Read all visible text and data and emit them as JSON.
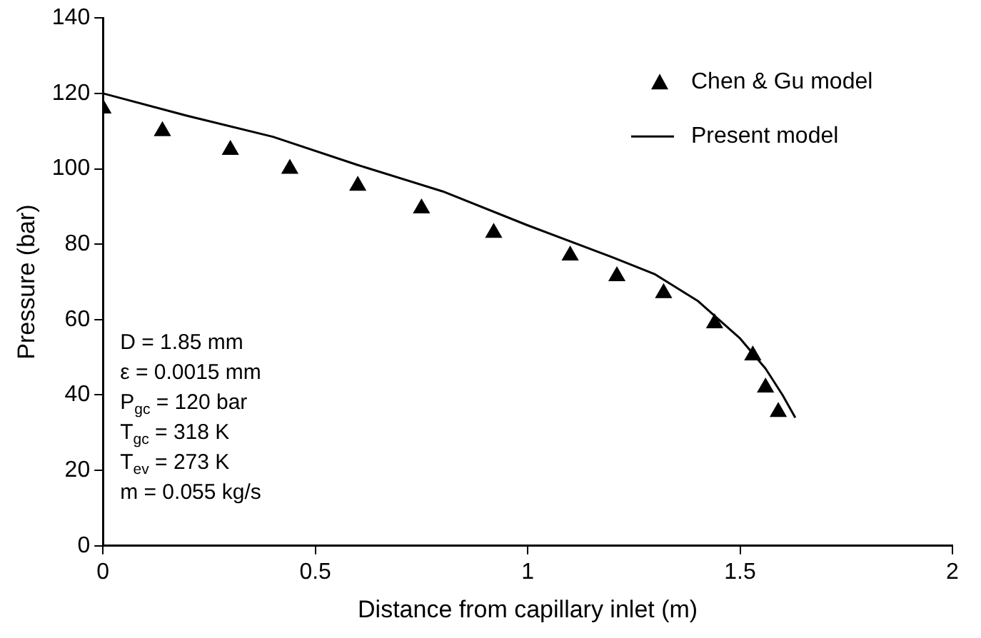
{
  "chart_data": {
    "type": "scatter",
    "xlabel": "Distance from capillary inlet (m)",
    "ylabel": "Pressure (bar)",
    "xlim": [
      0,
      2
    ],
    "xticks": [
      0,
      0.5,
      1,
      1.5,
      2
    ],
    "ylim": [
      0,
      140
    ],
    "yticks": [
      0,
      20,
      40,
      60,
      80,
      100,
      120,
      140
    ],
    "grid": false,
    "legend": "top right",
    "series": [
      {
        "name": "Chen & Gu model",
        "type": "scatter",
        "marker": "triangle",
        "color": "#000000",
        "x": [
          0,
          0.14,
          0.3,
          0.44,
          0.6,
          0.75,
          0.92,
          1.1,
          1.21,
          1.32,
          1.44,
          1.53,
          1.56,
          1.59
        ],
        "values": [
          116,
          110,
          105,
          100,
          95.5,
          89.5,
          83,
          77,
          71.5,
          67,
          59,
          50.5,
          42,
          35.5
        ]
      },
      {
        "name": "Present model",
        "type": "line",
        "marker": "none",
        "line_style": "solid",
        "color": "#000000",
        "x": [
          0,
          0.2,
          0.4,
          0.6,
          0.8,
          1.0,
          1.2,
          1.3,
          1.4,
          1.5,
          1.56,
          1.6,
          1.63
        ],
        "values": [
          120,
          114,
          108.5,
          101,
          94,
          85,
          76.5,
          72,
          65,
          55,
          47,
          40,
          34
        ]
      }
    ],
    "annotations": [
      "D = 1.85 mm",
      "ε = 0.0015 mm",
      "P$_{gc}$ = 120 bar",
      "T$_{gc}$ = 318 K",
      "T$_{ev}$ = 273 K",
      "m = 0.055 kg/s"
    ]
  }
}
